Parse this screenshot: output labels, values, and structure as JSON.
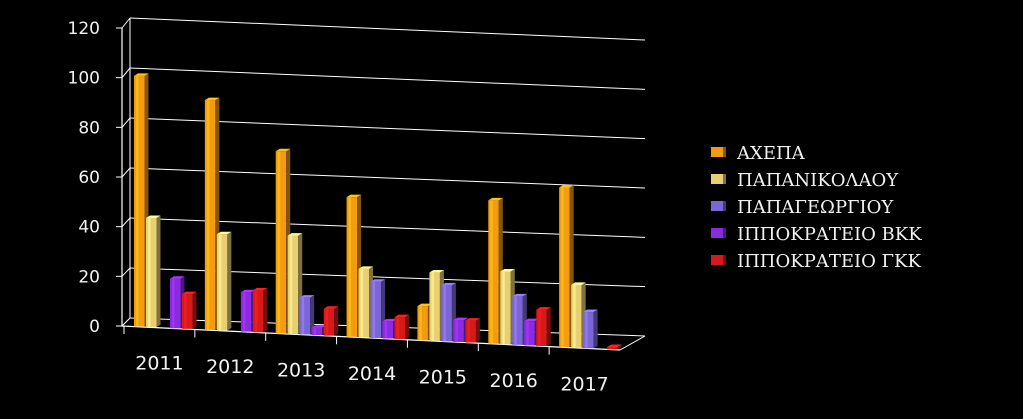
{
  "chart_data": {
    "type": "bar",
    "title": "",
    "xlabel": "",
    "ylabel": "",
    "ylim": [
      0,
      120
    ],
    "yticks": [
      "0",
      "20",
      "40",
      "60",
      "80",
      "100",
      "120"
    ],
    "categories": [
      "2011",
      "2012",
      "2013",
      "2014",
      "2015",
      "2016",
      "2017"
    ],
    "legend_position": "right",
    "grid": true,
    "style": "3d-columns",
    "series": [
      {
        "name": "ΑΧΕΠΑ",
        "color": "#f39c12",
        "values": [
          101,
          93,
          74,
          57,
          14,
          59,
          66
        ]
      },
      {
        "name": "ΠΑΠΑΝΙΚΟΛΑΟΥ",
        "color": "#e8cf74",
        "values": [
          44,
          39,
          40,
          28,
          28,
          30,
          26
        ]
      },
      {
        "name": "ΠΑΠΑΓΕΩΡΓΙΟΥ",
        "color": "#7b66d6",
        "values": [
          0,
          0,
          15,
          23,
          23,
          20,
          15
        ]
      },
      {
        "name": "ΙΠΠΟΚΡΑΤΕΙΟ ΒΚΚ",
        "color": "#8a2be2",
        "values": [
          20,
          16,
          3,
          7,
          9,
          10,
          0
        ]
      },
      {
        "name": "ΙΠΠΟΚΡΑΤΕΙΟ ΓΚΚ",
        "color": "#d61a1a",
        "values": [
          14,
          17,
          11,
          9,
          9,
          15,
          1
        ]
      }
    ]
  }
}
